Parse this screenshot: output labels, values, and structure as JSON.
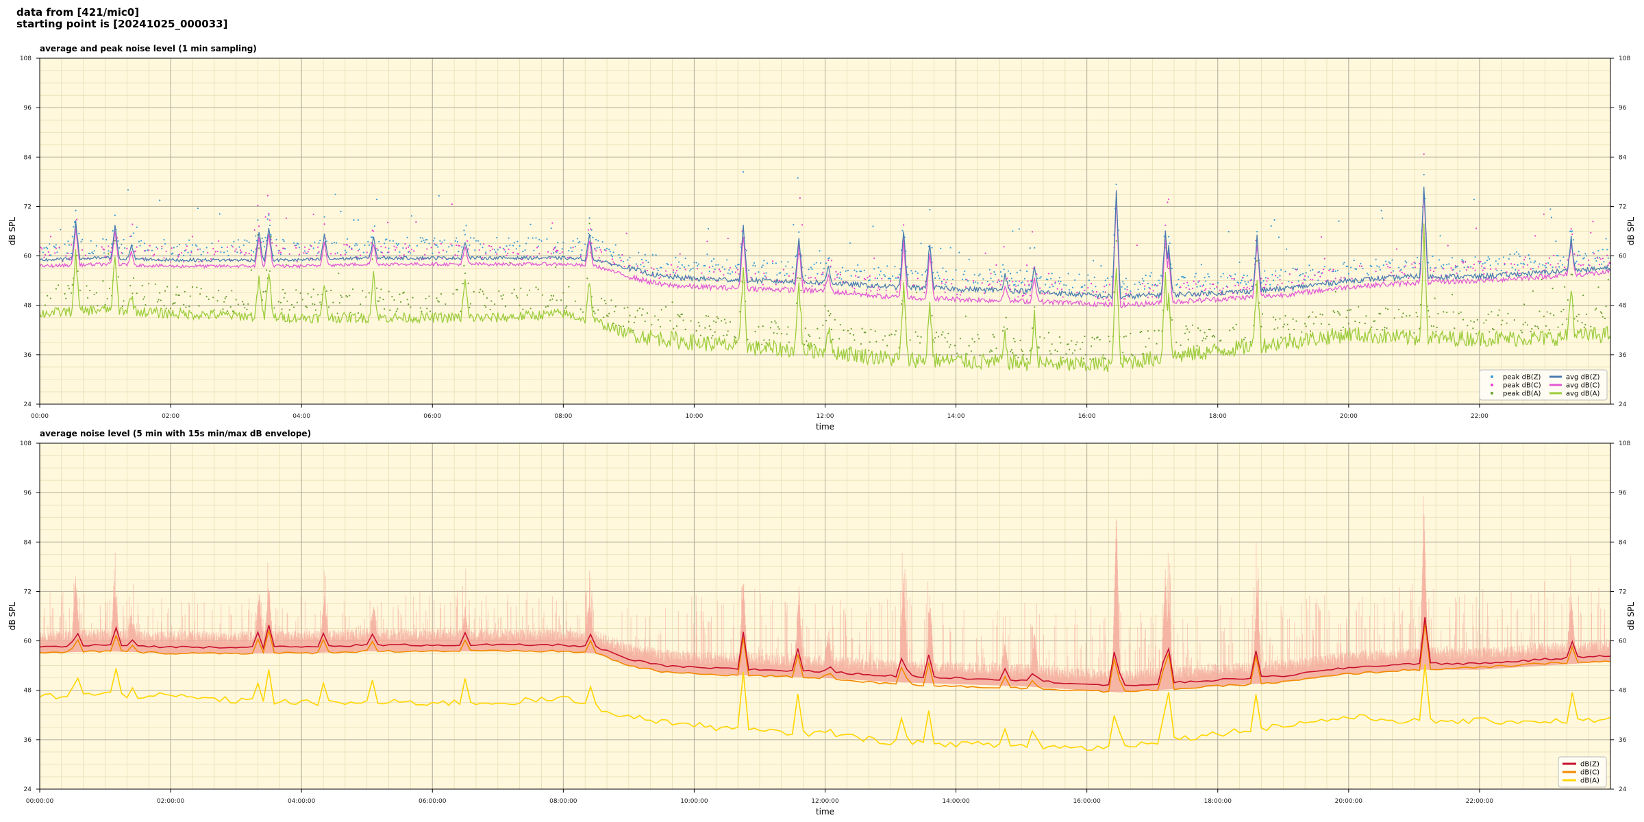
{
  "header": {
    "line1": "data from [421/mic0]",
    "line2": "starting point is [20241025_000033]"
  },
  "colors": {
    "plot_bg": "#fff8dc",
    "peak_z": "#3a9bd6",
    "peak_c": "#e83ccf",
    "peak_a": "#6a9e32",
    "avg_z": "#4a7db0",
    "avg_c": "#e25ad6",
    "avg_a": "#9ccc3c",
    "env_z": "#c8102e",
    "env_c": "#f28a00",
    "env_a": "#ffd500",
    "envelope_fill": "#f4a99a"
  },
  "chart_data": [
    {
      "type": "line",
      "title": "average and peak noise level (1 min sampling)",
      "xlabel": "time",
      "ylabel": "dB SPL",
      "ylim": [
        24,
        108
      ],
      "xlim_hours": [
        0,
        24
      ],
      "yticks": [
        24,
        36,
        48,
        60,
        72,
        84,
        96,
        108
      ],
      "xtick_labels": [
        "00:00",
        "02:00",
        "04:00",
        "06:00",
        "08:00",
        "10:00",
        "12:00",
        "14:00",
        "16:00",
        "18:00",
        "20:00",
        "22:00"
      ],
      "grid": true,
      "legend_position": "bottom-right",
      "legend": [
        "peak dB(Z)",
        "peak dB(C)",
        "peak dB(A)",
        "avg dB(Z)",
        "avg dB(C)",
        "avg dB(A)"
      ],
      "series": [
        {
          "name": "avg dB(Z)",
          "x_hours": [
            0,
            1,
            2,
            3,
            4,
            5,
            6,
            7,
            8,
            8.5,
            9,
            9.5,
            10,
            11,
            12,
            13,
            14,
            15,
            16,
            16.5,
            17,
            18,
            19,
            20,
            21,
            22,
            23,
            24
          ],
          "values": [
            59,
            59.5,
            59,
            59,
            59,
            59.5,
            59.5,
            59.5,
            59.5,
            59,
            57,
            55,
            54.5,
            54,
            53.5,
            52.5,
            52,
            51.5,
            50.5,
            50,
            50.5,
            51,
            52,
            54,
            55,
            55,
            56,
            57
          ]
        },
        {
          "name": "avg dB(C)",
          "x_hours": [
            0,
            1,
            2,
            3,
            4,
            5,
            6,
            7,
            8,
            8.5,
            9,
            9.5,
            10,
            11,
            12,
            13,
            14,
            15,
            16,
            16.5,
            17,
            18,
            19,
            20,
            21,
            22,
            23,
            24
          ],
          "values": [
            57.5,
            58,
            57.5,
            57.5,
            57.5,
            58,
            58,
            58,
            58,
            57.5,
            55,
            53,
            52.5,
            52,
            51.5,
            50,
            49.5,
            49,
            48.5,
            48,
            48.5,
            49.5,
            50.5,
            52.5,
            53.5,
            54,
            55,
            56
          ]
        },
        {
          "name": "avg dB(A)",
          "x_hours": [
            0,
            1,
            2,
            3,
            4,
            5,
            6,
            7,
            8,
            8.5,
            9,
            9.5,
            10,
            11,
            12,
            13,
            14,
            15,
            16,
            16.5,
            17,
            18,
            19,
            20,
            21,
            22,
            23,
            24
          ],
          "values": [
            46,
            47,
            46,
            45.5,
            45,
            45,
            45,
            45,
            46,
            44,
            41,
            40,
            39,
            37.5,
            37,
            35,
            34.5,
            34,
            33.5,
            34,
            35,
            37,
            39,
            41,
            40,
            40,
            40,
            41
          ]
        }
      ]
    },
    {
      "type": "line",
      "title": "average noise level (5 min with 15s min/max dB envelope)",
      "xlabel": "time",
      "ylabel": "dB SPL",
      "ylim": [
        24,
        108
      ],
      "xlim_hours": [
        0,
        24
      ],
      "yticks": [
        24,
        36,
        48,
        60,
        72,
        84,
        96,
        108
      ],
      "xtick_labels": [
        "00:00:00",
        "02:00:00",
        "04:00:00",
        "06:00:00",
        "08:00:00",
        "10:00:00",
        "12:00:00",
        "14:00:00",
        "16:00:00",
        "18:00:00",
        "20:00:00",
        "22:00:00"
      ],
      "grid": true,
      "legend_position": "bottom-right",
      "legend": [
        "dB(Z)",
        "dB(C)",
        "dB(A)"
      ],
      "series": [
        {
          "name": "dB(Z)",
          "x_hours": [
            0,
            1,
            2,
            3,
            4,
            5,
            6,
            7,
            8,
            8.5,
            9,
            9.5,
            10,
            11,
            12,
            13,
            14,
            15,
            16,
            16.5,
            17,
            18,
            19,
            20,
            21,
            22,
            23,
            24
          ],
          "values": [
            58.5,
            59,
            58.5,
            58.5,
            58.5,
            59,
            59,
            59,
            59,
            58.5,
            55.5,
            54,
            53.5,
            53,
            52.5,
            51.5,
            51,
            50.5,
            49.5,
            49,
            49.5,
            50.5,
            51.5,
            53.5,
            54.5,
            54.5,
            55.5,
            56.5
          ]
        },
        {
          "name": "dB(C)",
          "x_hours": [
            0,
            1,
            2,
            3,
            4,
            5,
            6,
            7,
            8,
            8.5,
            9,
            9.5,
            10,
            11,
            12,
            13,
            14,
            15,
            16,
            16.5,
            17,
            18,
            19,
            20,
            21,
            22,
            23,
            24
          ],
          "values": [
            57,
            57.5,
            57,
            57,
            57,
            57.5,
            57.5,
            57.5,
            57.5,
            57,
            54,
            52.5,
            52,
            51.5,
            51,
            49.5,
            49,
            48.5,
            48,
            47.5,
            48,
            49,
            50,
            52,
            53,
            53.5,
            54.5,
            55
          ]
        },
        {
          "name": "dB(A)",
          "x_hours": [
            0,
            1,
            2,
            3,
            4,
            5,
            6,
            7,
            8,
            8.5,
            9,
            9.5,
            10,
            11,
            12,
            13,
            14,
            15,
            16,
            16.5,
            17,
            18,
            19,
            20,
            21,
            22,
            23,
            24
          ],
          "values": [
            46.5,
            47,
            46.5,
            45.5,
            45,
            45,
            45,
            45,
            46,
            44,
            41.5,
            40.5,
            39.5,
            38,
            37.5,
            35.5,
            35,
            34.5,
            34,
            34.5,
            35.5,
            37.5,
            39.5,
            41.5,
            40.5,
            40.5,
            40.5,
            41
          ]
        }
      ]
    }
  ]
}
